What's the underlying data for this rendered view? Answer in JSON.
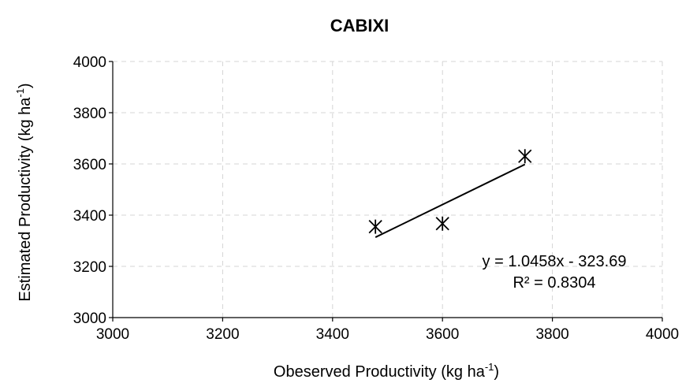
{
  "chart_data": {
    "type": "scatter",
    "title": "CABIXI",
    "xlabel": {
      "text": "Obeserved Productivity (kg ha",
      "sup": "-1",
      "close": ")"
    },
    "ylabel": {
      "text": "Estimated Productivity (kg ha",
      "sup": "-1",
      "close": ")"
    },
    "xlim": [
      3000,
      4000
    ],
    "ylim": [
      3000,
      4000
    ],
    "xticks": [
      3000,
      3200,
      3400,
      3600,
      3800,
      4000
    ],
    "yticks": [
      3000,
      3200,
      3400,
      3600,
      3800,
      4000
    ],
    "grid": true,
    "marker": "asterisk",
    "points": [
      {
        "x": 3478,
        "y": 3355
      },
      {
        "x": 3600,
        "y": 3367
      },
      {
        "x": 3750,
        "y": 3630
      }
    ],
    "trendline": {
      "type": "linear",
      "slope": 1.0458,
      "intercept": -323.69,
      "x_range": [
        3478,
        3750
      ],
      "equation": "y = 1.0458x - 323.69",
      "r2": "R² = 0.8304"
    },
    "colors": {
      "marker": "#000000",
      "line": "#000000",
      "grid": "#d4d4d4"
    }
  }
}
